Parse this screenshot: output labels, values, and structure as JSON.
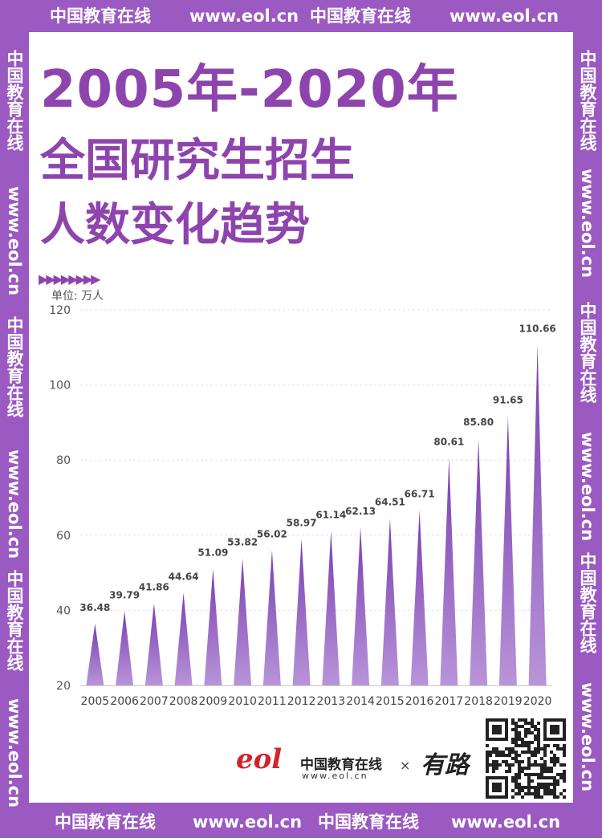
{
  "watermark": {
    "cn": "中国教育在线",
    "url": "www.eol.cn"
  },
  "title": {
    "line1": "2005年-2020年",
    "line2": "全国研究生招生",
    "line3": "人数变化趋势"
  },
  "unit_label": "单位: 万人",
  "decoration": "▶▶▶▶▶▶▶▶",
  "footer": {
    "eol_mark": "eol",
    "brand_cn": "中国教育在线",
    "brand_url": "www.eol.cn",
    "times": "×",
    "partner_logo": "有路"
  },
  "colors": {
    "brand": "#9b59c2",
    "bar_top": "#7b3fb0",
    "bar_bottom": "#b894d9"
  },
  "chart_data": {
    "type": "bar",
    "categories": [
      "2005",
      "2006",
      "2007",
      "2008",
      "2009",
      "2010",
      "2011",
      "2012",
      "2013",
      "2014",
      "2015",
      "2016",
      "2017",
      "2018",
      "2019",
      "2020"
    ],
    "series": [
      {
        "values": [
          36.48,
          39.79,
          41.86,
          44.64,
          51.09,
          53.82,
          56.02,
          58.97,
          61.14,
          62.13,
          64.51,
          66.71,
          80.61,
          85.8,
          91.65,
          110.66
        ]
      }
    ],
    "data_labels": [
      "36.48",
      "39.79",
      "41.86",
      "44.64",
      "51.09",
      "53.82",
      "56.02",
      "58.97",
      "61.14",
      "62.13",
      "64.51",
      "66.71",
      "80.61",
      "85.80",
      "91.65",
      "110.66"
    ],
    "yticks": [
      20,
      40,
      60,
      80,
      100,
      120
    ],
    "ylim": [
      20,
      120
    ],
    "grid": true,
    "mark_shape": "spike"
  }
}
